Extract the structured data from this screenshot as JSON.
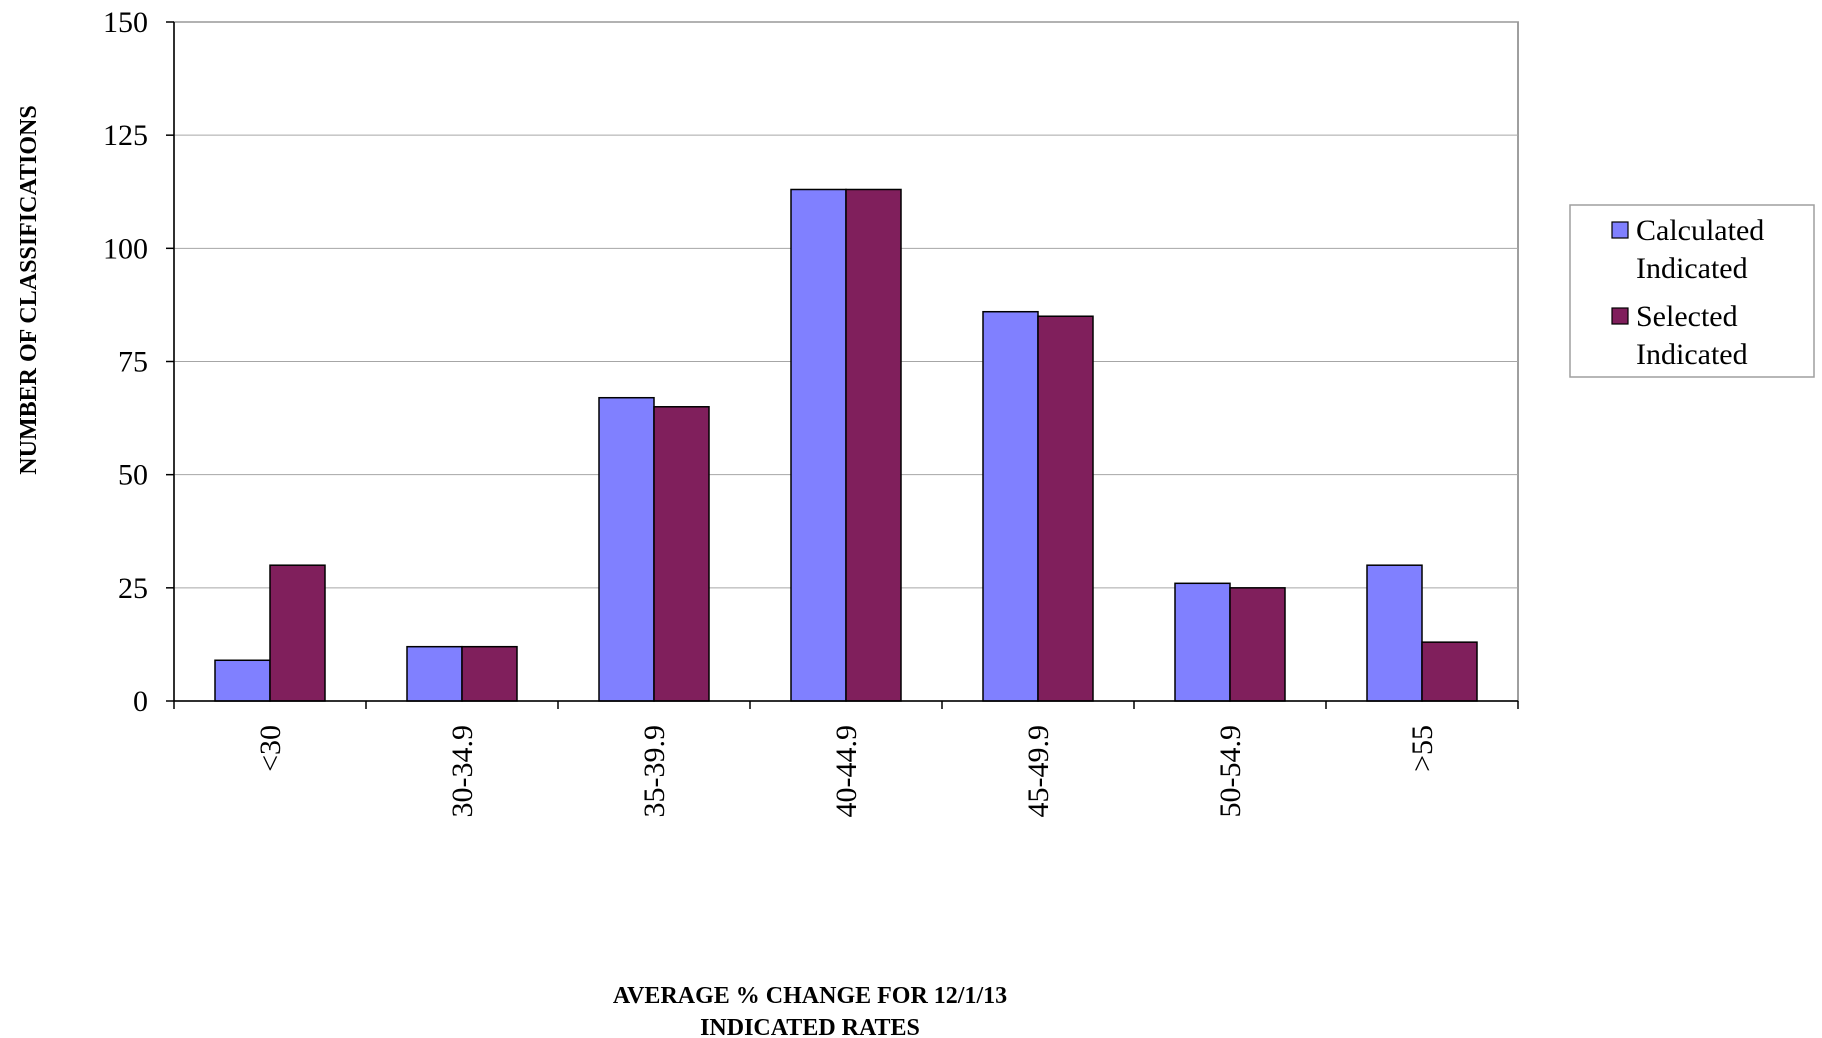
{
  "chart_data": {
    "type": "bar",
    "categories": [
      "<30",
      "30-34.9",
      "35-39.9",
      "40-44.9",
      "45-49.9",
      "50-54.9",
      ">55"
    ],
    "series": [
      {
        "name": "Calculated Indicated",
        "legend_lines": [
          "Calculated",
          "Indicated"
        ],
        "color": "#8080FF",
        "values": [
          9,
          12,
          67,
          113,
          86,
          26,
          30
        ]
      },
      {
        "name": "Selected Indicated",
        "legend_lines": [
          "Selected",
          "Indicated"
        ],
        "color": "#801F5C",
        "values": [
          30,
          12,
          65,
          113,
          85,
          25,
          13
        ]
      }
    ],
    "ylabel": "NUMBER OF CLASSIFICATIONS",
    "xlabel_lines": [
      "AVERAGE % CHANGE FOR 12/1/13",
      "INDICATED RATES"
    ],
    "ylim": [
      0,
      150
    ],
    "yticks": [
      0,
      25,
      50,
      75,
      100,
      125,
      150
    ],
    "grid": true,
    "legend_position": "right"
  }
}
